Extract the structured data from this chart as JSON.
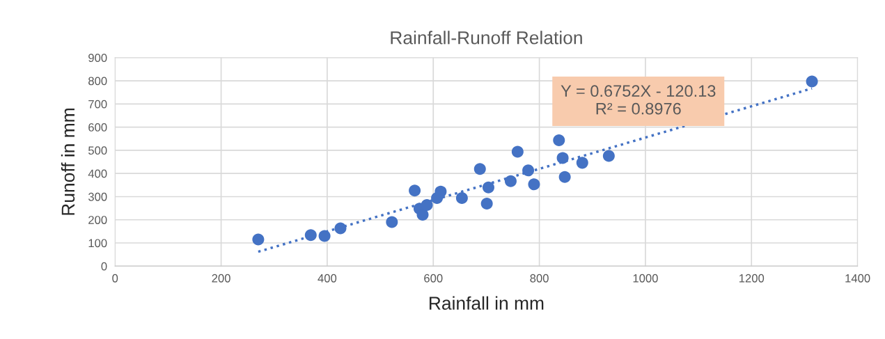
{
  "chart_data": {
    "type": "scatter",
    "title": "Rainfall-Runoff Relation",
    "xlabel": "Rainfall in mm",
    "ylabel": "Runoff in mm",
    "xlim": [
      0,
      1400
    ],
    "xticks": [
      0,
      200,
      400,
      600,
      800,
      1000,
      1200,
      1400
    ],
    "ylim": [
      0,
      900
    ],
    "yticks": [
      0,
      100,
      200,
      300,
      400,
      500,
      600,
      700,
      800,
      900
    ],
    "grid": true,
    "marker": "circle",
    "series": [
      {
        "color": "#4472c4",
        "x": [
          270,
          369,
          395,
          425,
          522,
          565,
          574,
          580,
          588,
          607,
          614,
          654,
          688,
          701,
          704,
          746,
          759,
          779,
          790,
          837,
          844,
          848,
          881,
          931,
          1314
        ],
        "values": [
          115,
          134,
          130,
          163,
          190,
          326,
          248,
          222,
          264,
          294,
          322,
          294,
          419,
          270,
          340,
          367,
          494,
          413,
          353,
          543,
          467,
          385,
          446,
          476,
          797
        ]
      },
      {
        "type": "line",
        "color": "#4472c4",
        "line_style": "dotted",
        "marker": "none",
        "x": [
          270,
          1314
        ],
        "values": [
          62,
          767
        ]
      }
    ],
    "annotations": [
      "Y = 0.6752X - 120.13\nR² = 0.8976"
    ]
  }
}
